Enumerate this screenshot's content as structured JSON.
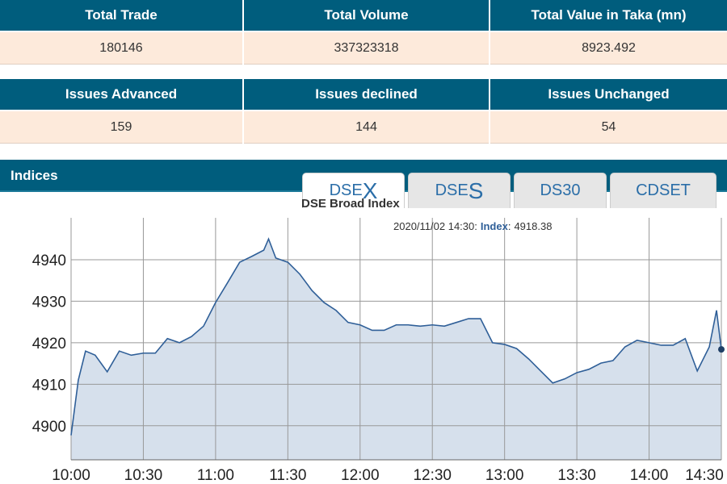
{
  "stats": [
    {
      "headers": [
        "Total Trade",
        "Total Volume",
        "Total Value in Taka (mn)"
      ],
      "values": [
        180146,
        337323318,
        8923.492
      ]
    },
    {
      "headers": [
        "Issues Advanced",
        "Issues declined",
        "Issues Unchanged"
      ],
      "values": [
        159,
        144,
        54
      ]
    }
  ],
  "indices": {
    "title": "Indices",
    "tabs": [
      {
        "main": "DSE",
        "big": "X"
      },
      {
        "main": "DSE",
        "big": "S"
      },
      {
        "main": "DS30"
      },
      {
        "main": "CDSET"
      }
    ]
  },
  "chart_data": {
    "type": "line",
    "title": "DSE Broad Index",
    "tooltip": {
      "time": "2020/11/02 14:30:",
      "label": "Index",
      "value": 4918.38
    },
    "x": [
      "10:00",
      "10:03",
      "10:06",
      "10:10",
      "10:15",
      "10:20",
      "10:25",
      "10:30",
      "10:35",
      "10:40",
      "10:45",
      "10:50",
      "10:55",
      "11:00",
      "11:05",
      "11:10",
      "11:15",
      "11:20",
      "11:22",
      "11:25",
      "11:30",
      "11:35",
      "11:40",
      "11:45",
      "11:50",
      "11:55",
      "12:00",
      "12:05",
      "12:10",
      "12:15",
      "12:20",
      "12:25",
      "12:30",
      "12:35",
      "12:40",
      "12:45",
      "12:50",
      "12:55",
      "13:00",
      "13:05",
      "13:10",
      "13:15",
      "13:20",
      "13:25",
      "13:30",
      "13:35",
      "13:40",
      "13:45",
      "13:50",
      "13:55",
      "14:00",
      "14:05",
      "14:10",
      "14:15",
      "14:20",
      "14:25",
      "14:28",
      "14:30"
    ],
    "series": [
      {
        "color": "#2f5f98",
        "values": [
          4897.7,
          4911,
          4918,
          4917,
          4913,
          4918,
          4917,
          4917.5,
          4917.5,
          4921,
          4920,
          4921.5,
          4924,
          4929.7,
          4934.5,
          4939.4,
          4940.8,
          4942.3,
          4945,
          4940.4,
          4939.4,
          4936.5,
          4932.6,
          4929.7,
          4927.8,
          4924.9,
          4924.3,
          4923,
          4923,
          4924.3,
          4924.3,
          4924,
          4924.3,
          4924,
          4924.9,
          4925.8,
          4925.8,
          4920,
          4919.6,
          4918.6,
          4916.1,
          4913.2,
          4910.3,
          4911.3,
          4912.8,
          4913.6,
          4915.1,
          4915.7,
          4919,
          4920.6,
          4920,
          4919.4,
          4919.4,
          4921,
          4913.2,
          4919,
          4927.8,
          4918.4
        ]
      }
    ],
    "fill": "#d6e0ec",
    "xlim": [
      "10:00",
      "14:30"
    ],
    "xticks": [
      "10:00",
      "10:30",
      "11:00",
      "11:30",
      "12:00",
      "12:30",
      "13:00",
      "13:30",
      "14:00",
      "14:30"
    ],
    "ylim": [
      4891.8,
      4950.1
    ],
    "yticks": [
      4900,
      4910,
      4920,
      4930,
      4940
    ],
    "grid": true
  }
}
